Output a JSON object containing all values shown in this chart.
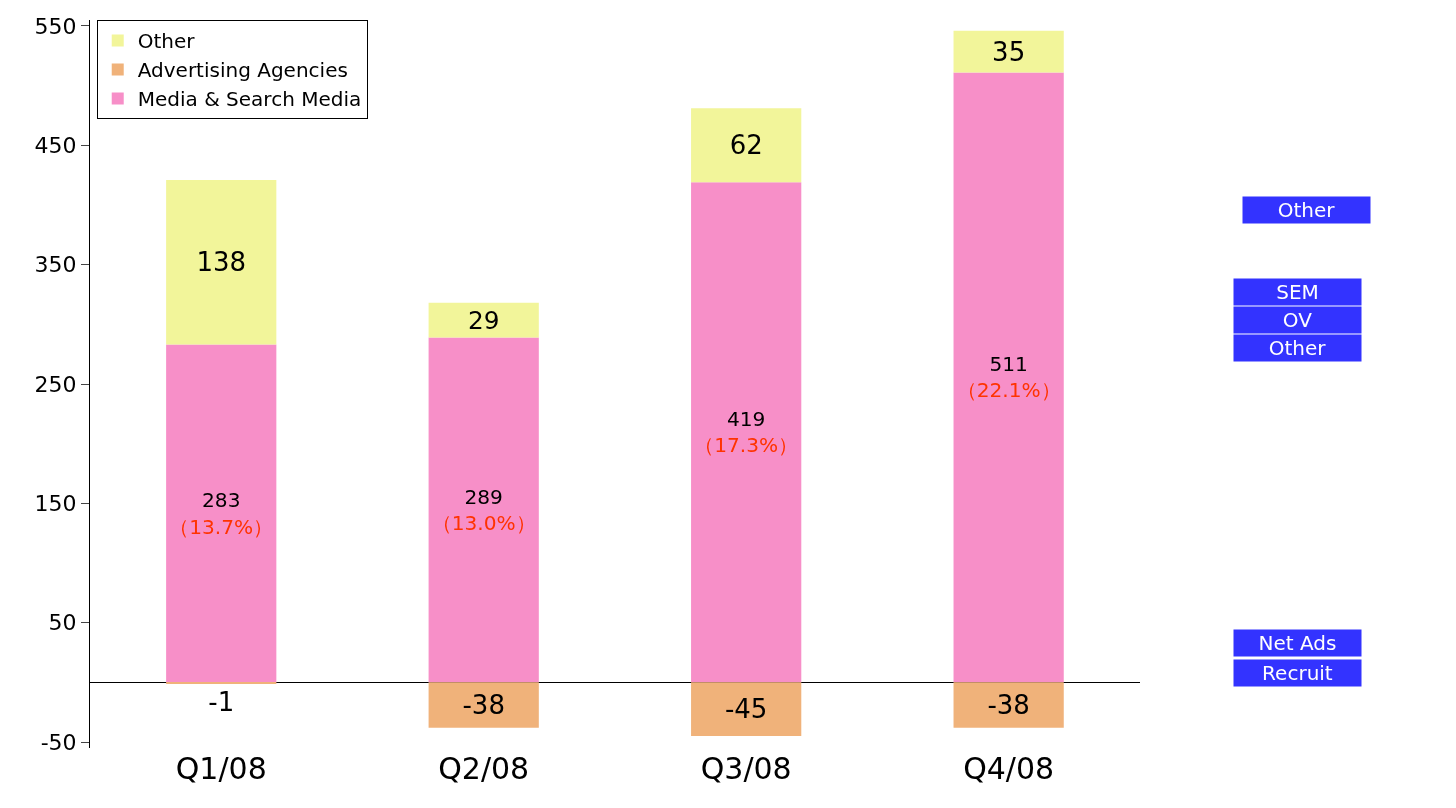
{
  "chart_data": {
    "type": "bar",
    "stacked": true,
    "categories": [
      "Q1/08",
      "Q2/08",
      "Q3/08",
      "Q4/08"
    ],
    "series": [
      {
        "name": "Media & Search Media",
        "color": "#f78fc8",
        "values": [
          283,
          289,
          419,
          511
        ],
        "value_labels": [
          "283\n（13.7%）",
          "289\n（13.0%）",
          "419\n（17.3%）",
          "511\n（22.1%）"
        ]
      },
      {
        "name": "Advertising Agencies",
        "color": "#f0b27a",
        "values": [
          -1,
          -38,
          -45,
          -38
        ],
        "value_labels": [
          "-1",
          "-38",
          "-45",
          "-38"
        ]
      },
      {
        "name": "Other",
        "color": "#f2f59a",
        "values": [
          138,
          29,
          62,
          35
        ],
        "value_labels": [
          "138",
          "29",
          "62",
          "35"
        ]
      }
    ],
    "ylim": [
      -55,
      555
    ],
    "yticks": [
      -50,
      50,
      150,
      250,
      350,
      450,
      550
    ],
    "legend": "top left",
    "annotations": [
      "Other",
      "SEM",
      "OV",
      "Other",
      "Net Ads",
      "Recruit"
    ]
  }
}
